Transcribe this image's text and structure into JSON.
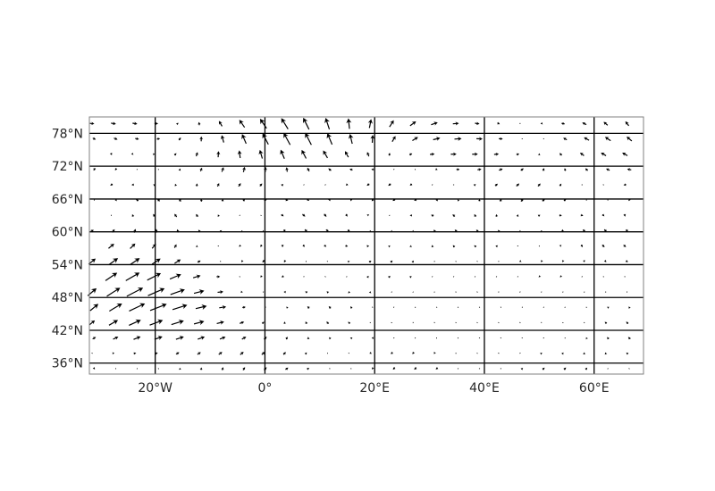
{
  "map": {
    "projection": "PlateCarree",
    "extent": {
      "lon": [
        -32,
        69
      ],
      "lat": [
        34,
        81
      ]
    },
    "gridlines": {
      "lons": [
        -20,
        0,
        20,
        40,
        60
      ],
      "lats": [
        36,
        42,
        48,
        54,
        60,
        66,
        72,
        78
      ],
      "color": "#000000"
    },
    "x_tick_labels": [
      {
        "lon": -20,
        "text": "20°W"
      },
      {
        "lon": 0,
        "text": "0°"
      },
      {
        "lon": 20,
        "text": "20°E"
      },
      {
        "lon": 40,
        "text": "40°E"
      },
      {
        "lon": 60,
        "text": "60°E"
      }
    ],
    "y_tick_labels": [
      {
        "lat": 78,
        "text": "78°N"
      },
      {
        "lat": 72,
        "text": "72°N"
      },
      {
        "lat": 66,
        "text": "66°N"
      },
      {
        "lat": 60,
        "text": "60°N"
      },
      {
        "lat": 54,
        "text": "54°N"
      },
      {
        "lat": 48,
        "text": "48°N"
      },
      {
        "lat": 42,
        "text": "42°N"
      },
      {
        "lat": 36,
        "text": "36°N"
      }
    ],
    "frame_color": "#808080",
    "arrow_color": "#000000",
    "arrow_field": "quiver vector field on a regular lon/lat grid; vectors encode wind direction and speed (values estimated)"
  }
}
